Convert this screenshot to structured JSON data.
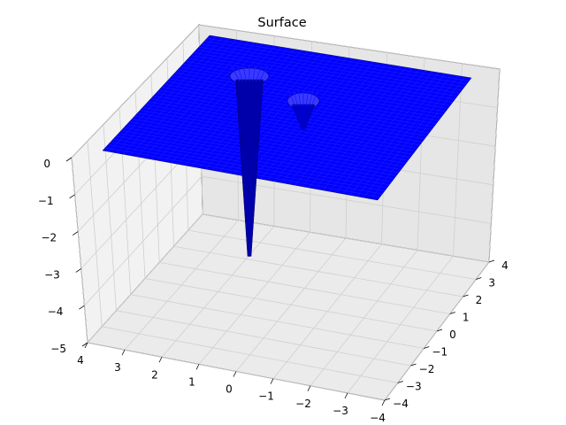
{
  "chart_data": {
    "type": "surface",
    "title": "Surface",
    "xlabel": "",
    "ylabel": "",
    "zlabel": "",
    "xlim": [
      -4,
      4
    ],
    "ylim": [
      -4,
      4
    ],
    "zlim": [
      -5,
      0
    ],
    "x_ticks": [
      "4",
      "3",
      "2",
      "1",
      "0",
      "−1",
      "−2",
      "−3",
      "−4"
    ],
    "y_ticks": [
      "4",
      "3",
      "2",
      "1",
      "0",
      "−1",
      "−2",
      "−3",
      "−4"
    ],
    "z_ticks": [
      "0",
      "−1",
      "−2",
      "−3",
      "−4",
      "−5"
    ],
    "grid": true,
    "surface_color": "#0000ff",
    "surface_base_level": 0,
    "features": [
      {
        "kind": "well",
        "x": 0.9,
        "y": 2.3,
        "depth": -4.9
      },
      {
        "kind": "well",
        "x": -1.4,
        "y": 1.7,
        "depth": -0.9
      }
    ]
  }
}
